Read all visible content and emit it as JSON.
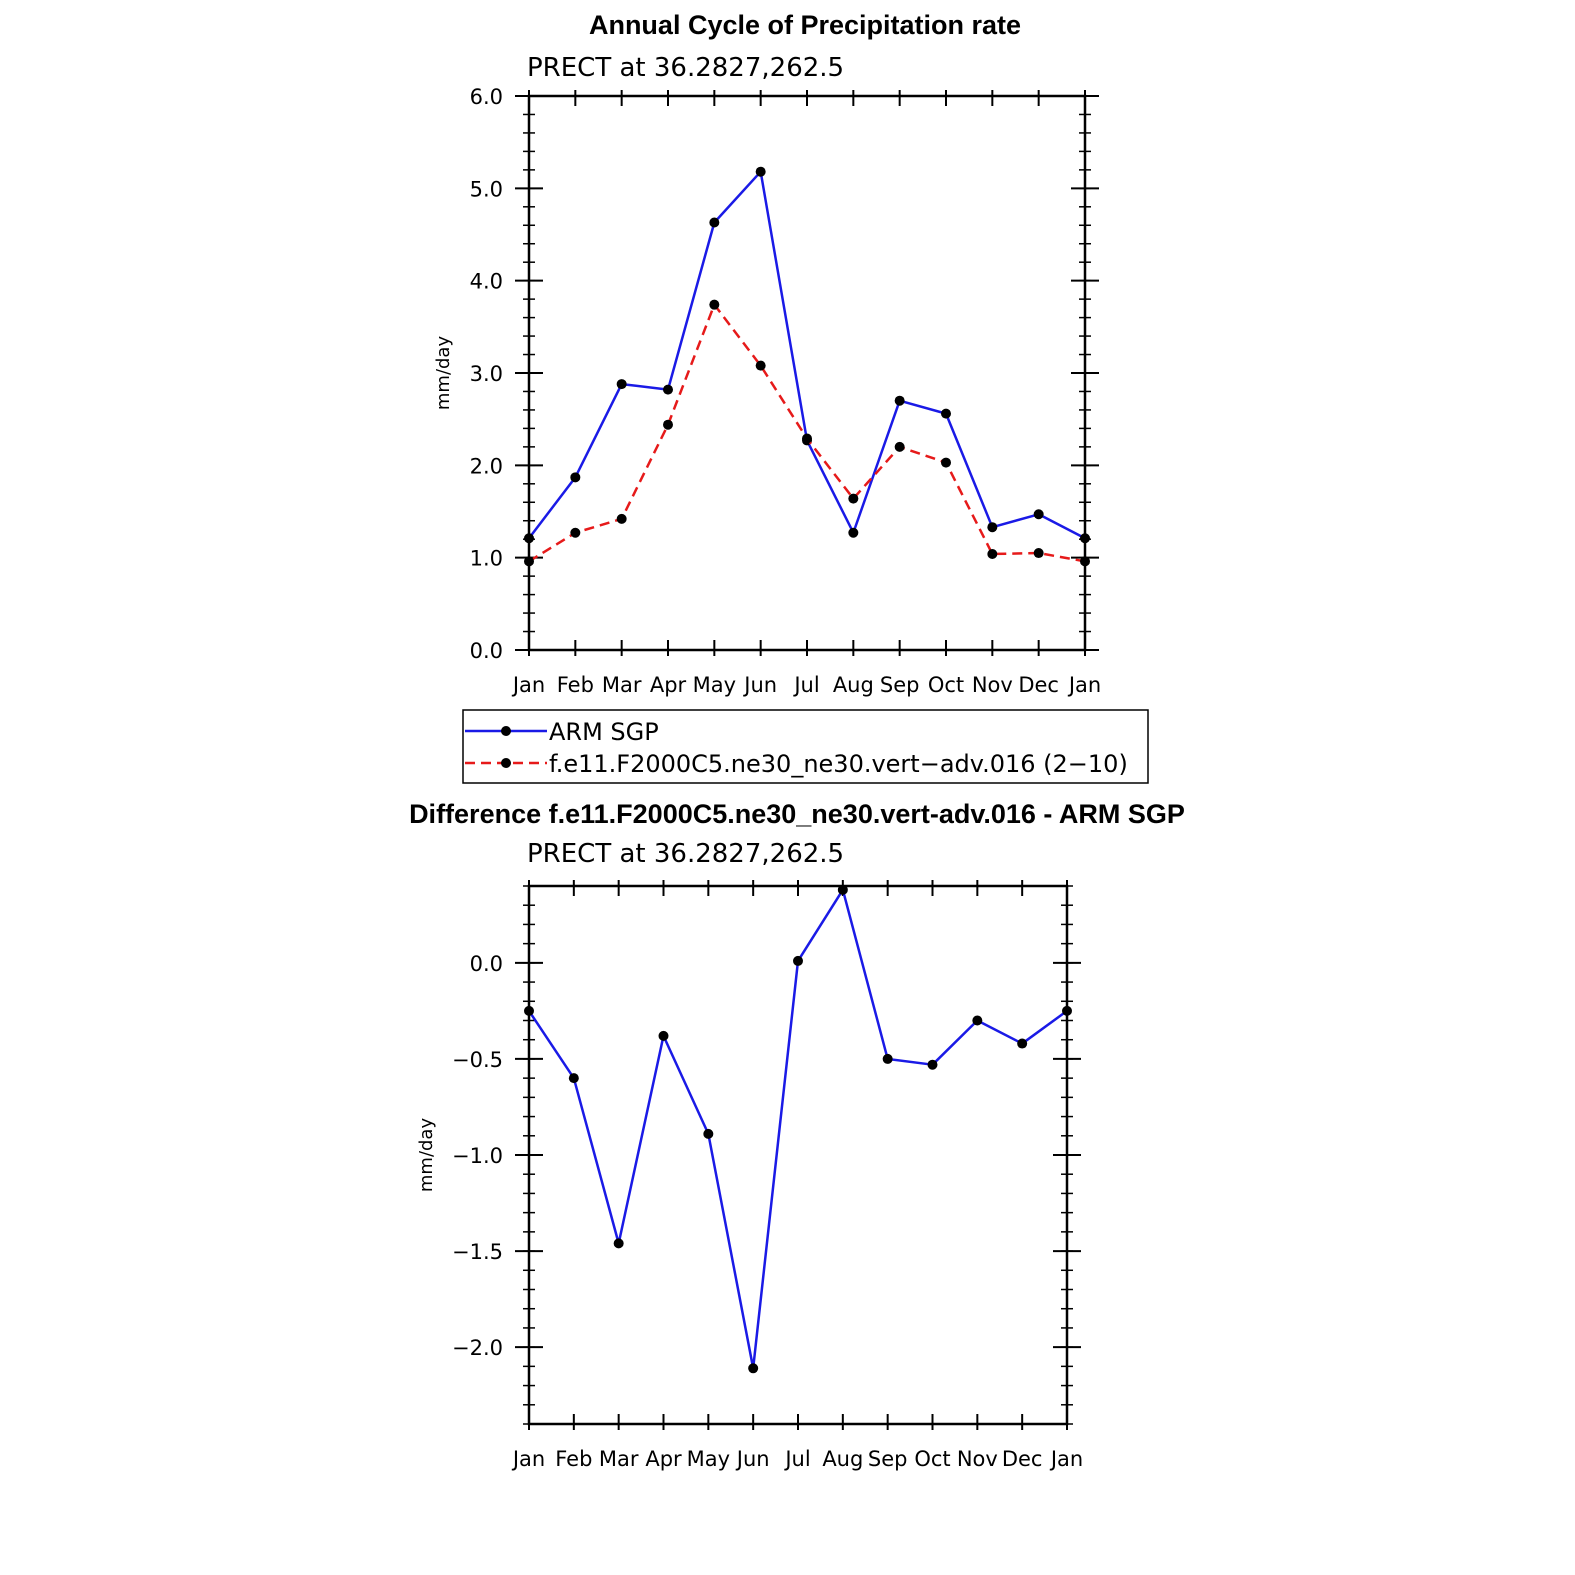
{
  "chart_data": [
    {
      "type": "line",
      "title": "Annual Cycle of Precipitation rate",
      "subtitle": "PRECT at 36.2827,262.5",
      "ylabel": "mm/day",
      "xlabel": "",
      "categories": [
        "Jan",
        "Feb",
        "Mar",
        "Apr",
        "May",
        "Jun",
        "Jul",
        "Aug",
        "Sep",
        "Oct",
        "Nov",
        "Dec",
        "Jan"
      ],
      "ylim": [
        0,
        6
      ],
      "yticks": [
        "0.0",
        "1.0",
        "2.0",
        "3.0",
        "4.0",
        "5.0",
        "6.0"
      ],
      "grid": false,
      "legend_position": "below",
      "series": [
        {
          "name": "ARM SGP",
          "color": "#1a1ae6",
          "style": "solid",
          "values": [
            1.21,
            1.87,
            2.88,
            2.82,
            4.63,
            5.18,
            2.27,
            1.27,
            2.7,
            2.56,
            1.33,
            1.47,
            1.21
          ]
        },
        {
          "name": "f.e11.F2000C5.ne30_ne30.vert−adv.016 (2−10)",
          "color": "#e61a1a",
          "style": "dashed",
          "values": [
            0.96,
            1.27,
            1.42,
            2.44,
            3.74,
            3.08,
            2.29,
            1.64,
            2.2,
            2.03,
            1.04,
            1.05,
            0.96
          ]
        }
      ]
    },
    {
      "type": "line",
      "title": "Difference f.e11.F2000C5.ne30_ne30.vert-adv.016 - ARM SGP",
      "subtitle": "PRECT at 36.2827,262.5",
      "ylabel": "mm/day",
      "xlabel": "",
      "categories": [
        "Jan",
        "Feb",
        "Mar",
        "Apr",
        "May",
        "Jun",
        "Jul",
        "Aug",
        "Sep",
        "Oct",
        "Nov",
        "Dec",
        "Jan"
      ],
      "ylim": [
        -2.4,
        0.4
      ],
      "yticks": [
        "−2.0",
        "−1.5",
        "−1.0",
        "−0.5",
        "0.0"
      ],
      "ytick_values": [
        -2.0,
        -1.5,
        -1.0,
        -0.5,
        0.0
      ],
      "grid": false,
      "series": [
        {
          "color": "#1a1ae6",
          "style": "solid",
          "values": [
            -0.25,
            -0.6,
            -1.46,
            -0.38,
            -0.89,
            -2.11,
            0.01,
            0.38,
            -0.5,
            -0.53,
            -0.3,
            -0.42,
            -0.25
          ]
        }
      ]
    }
  ]
}
